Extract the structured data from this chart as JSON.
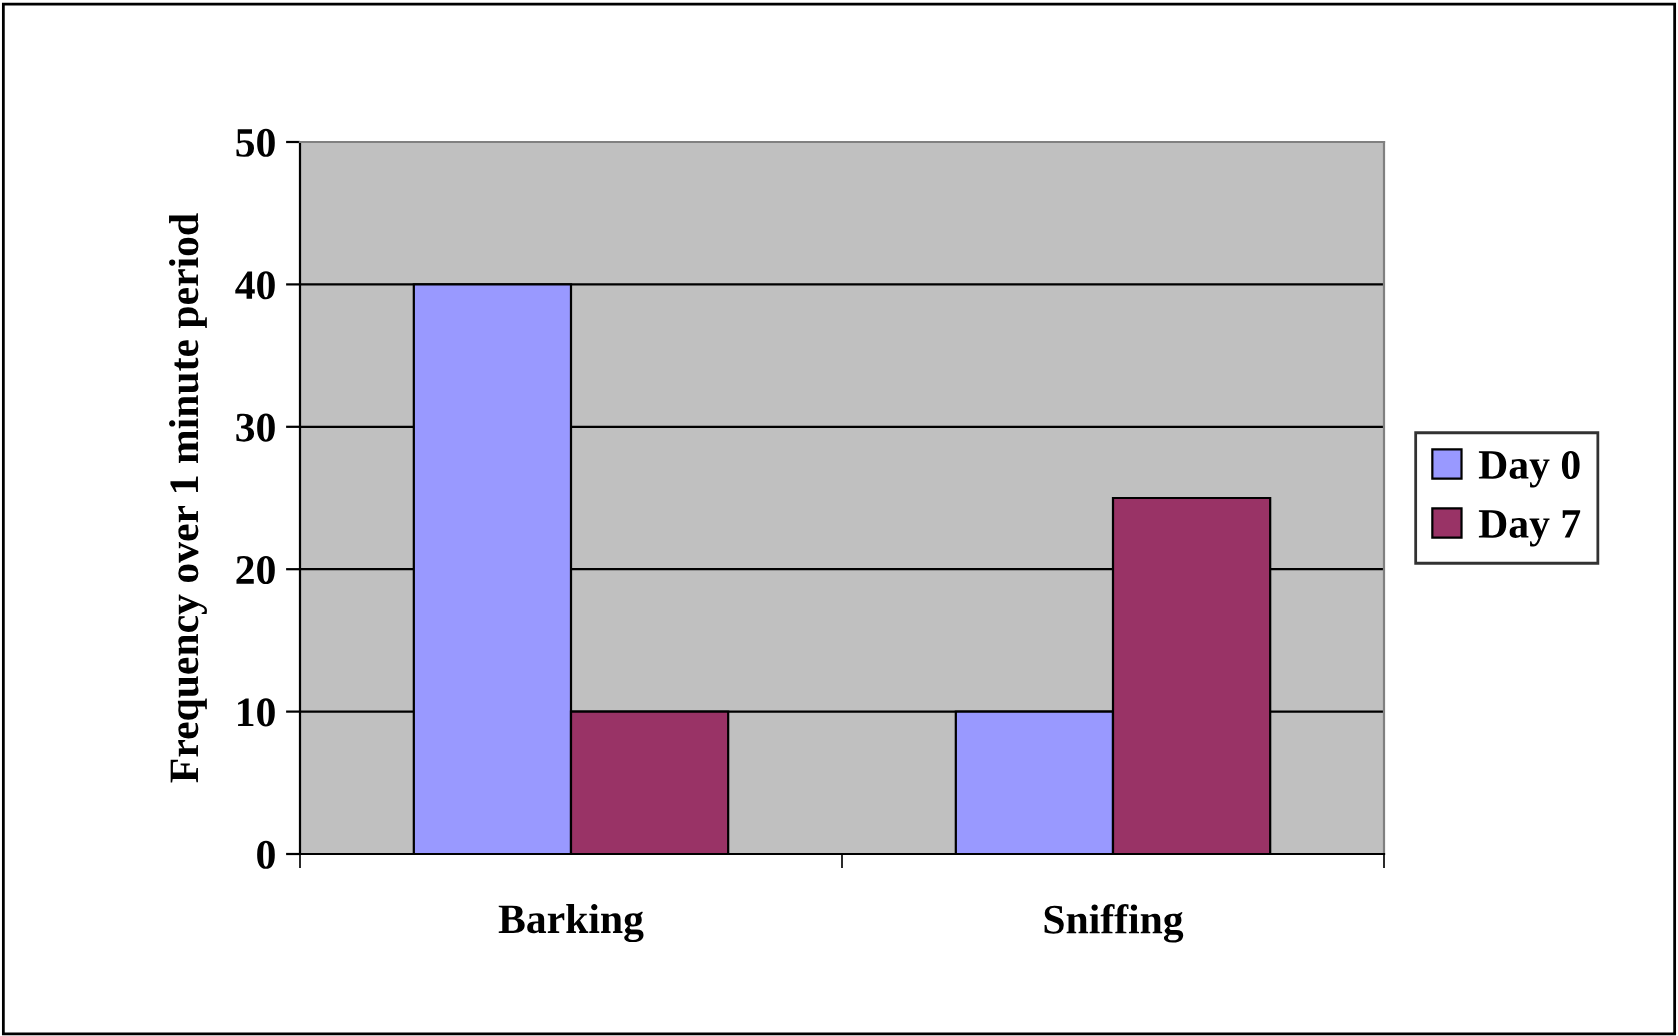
{
  "chart_data": {
    "type": "bar",
    "ylabel": "Frequency over 1 minute period",
    "categories": [
      "Barking",
      "Sniffing"
    ],
    "series": [
      {
        "name": "Day 0",
        "color": "#9999ff",
        "values": [
          40,
          10
        ]
      },
      {
        "name": "Day 7",
        "color": "#993366",
        "values": [
          10,
          25
        ]
      }
    ],
    "ylim": [
      0,
      50
    ],
    "yticks": [
      0,
      10,
      20,
      30,
      40,
      50
    ],
    "grid": "y",
    "legend": "right"
  }
}
